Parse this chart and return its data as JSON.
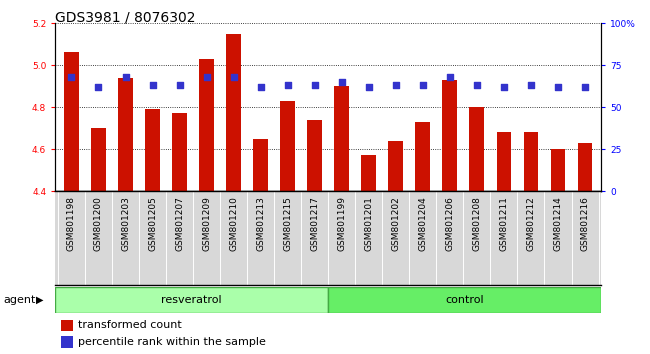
{
  "title": "GDS3981 / 8076302",
  "samples": [
    "GSM801198",
    "GSM801200",
    "GSM801203",
    "GSM801205",
    "GSM801207",
    "GSM801209",
    "GSM801210",
    "GSM801213",
    "GSM801215",
    "GSM801217",
    "GSM801199",
    "GSM801201",
    "GSM801202",
    "GSM801204",
    "GSM801206",
    "GSM801208",
    "GSM801211",
    "GSM801212",
    "GSM801214",
    "GSM801216"
  ],
  "red_values": [
    5.06,
    4.7,
    4.94,
    4.79,
    4.77,
    5.03,
    5.15,
    4.65,
    4.83,
    4.74,
    4.9,
    4.57,
    4.64,
    4.73,
    4.93,
    4.8,
    4.68,
    4.68,
    4.6,
    4.63
  ],
  "blue_values": [
    68,
    62,
    68,
    63,
    63,
    68,
    68,
    62,
    63,
    63,
    65,
    62,
    63,
    63,
    68,
    63,
    62,
    63,
    62,
    62
  ],
  "ylim_left": [
    4.4,
    5.2
  ],
  "ylim_right": [
    0,
    100
  ],
  "yticks_left": [
    4.4,
    4.6,
    4.8,
    5.0,
    5.2
  ],
  "yticks_right": [
    0,
    25,
    50,
    75,
    100
  ],
  "ytick_labels_right": [
    "0",
    "25",
    "50",
    "75",
    "100%"
  ],
  "group_labels": [
    "resveratrol",
    "control"
  ],
  "group_sizes": [
    10,
    10
  ],
  "bar_color": "#cc1100",
  "dot_color": "#3333cc",
  "bar_bottom": 4.4,
  "resveratrol_color": "#aaffaa",
  "control_color": "#66ee66",
  "agent_label": "agent",
  "legend_red": "transformed count",
  "legend_blue": "percentile rank within the sample",
  "title_fontsize": 10,
  "tick_fontsize": 6.5,
  "label_fontsize": 8,
  "group_fontsize": 8
}
